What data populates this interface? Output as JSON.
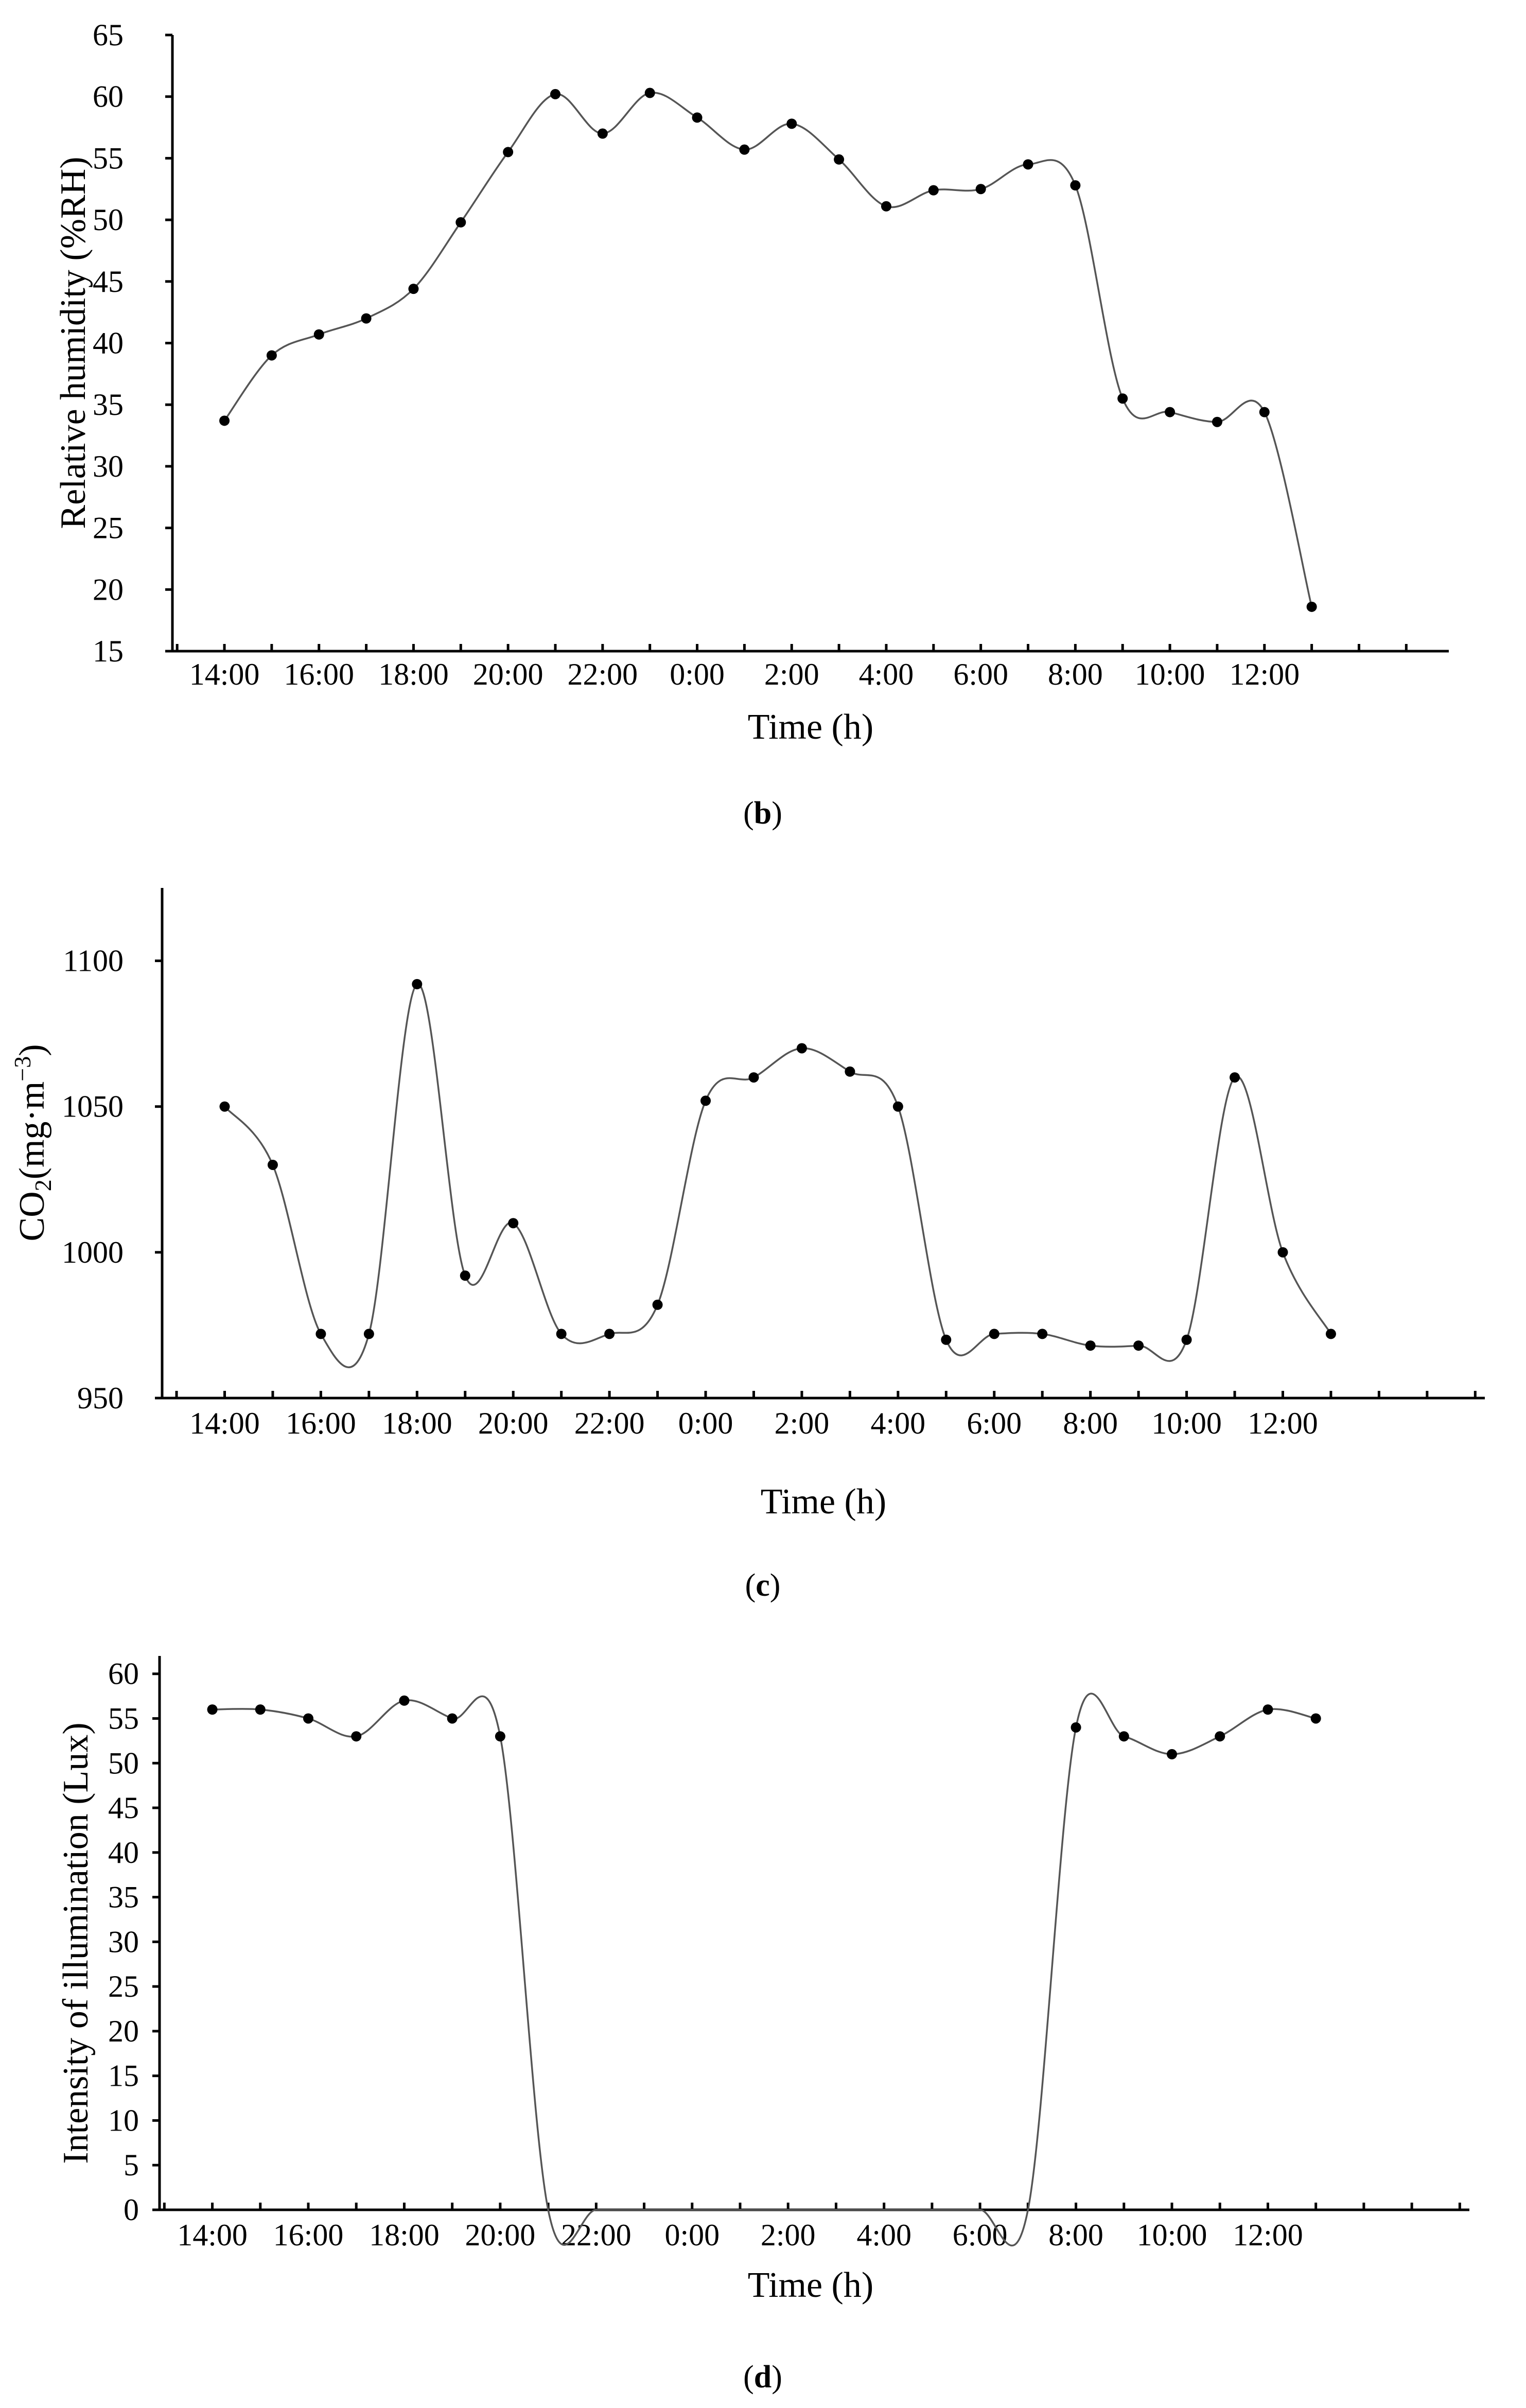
{
  "chart_data": [
    {
      "type": "line",
      "id": "b",
      "caption_letter": "b",
      "xlabel": "Time (h)",
      "ylabel": "Relative humidity (%RH)",
      "ylim": [
        15,
        65
      ],
      "yticks": [
        15,
        20,
        25,
        30,
        35,
        40,
        45,
        50,
        55,
        60,
        65
      ],
      "xlim": [
        12.9,
        39.9
      ],
      "xtick_labels": [
        "14:00",
        "16:00",
        "18:00",
        "20:00",
        "22:00",
        "0:00",
        "2:00",
        "4:00",
        "6:00",
        "8:00",
        "10:00",
        "12:00"
      ],
      "x": [
        14,
        15,
        16,
        17,
        18,
        19,
        20,
        21,
        22,
        23,
        24,
        25,
        26,
        27,
        28,
        29,
        30,
        31,
        32,
        33,
        34,
        35,
        36,
        37
      ],
      "values": [
        33.7,
        39.0,
        40.7,
        42.0,
        44.4,
        49.8,
        55.5,
        60.2,
        57.0,
        60.3,
        58.3,
        55.7,
        57.8,
        54.9,
        51.1,
        52.4,
        52.5,
        54.5,
        52.8,
        35.5,
        34.4,
        33.6,
        34.4,
        18.6
      ]
    },
    {
      "type": "line",
      "id": "c",
      "caption_letter": "c",
      "xlabel": "Time (h)",
      "ylabel_main": "CO",
      "ylabel_sub": "2",
      "ylabel_unit_pre": "(mg·m",
      "ylabel_sup": "−3",
      "ylabel_unit_post": ")",
      "ylim": [
        950,
        1125
      ],
      "yticks": [
        950,
        1000,
        1050,
        1100
      ],
      "xlim": [
        12.7,
        40.2
      ],
      "xtick_labels": [
        "14:00",
        "16:00",
        "18:00",
        "20:00",
        "22:00",
        "0:00",
        "2:00",
        "4:00",
        "6:00",
        "8:00",
        "10:00",
        "12:00"
      ],
      "x": [
        14,
        15,
        16,
        17,
        18,
        19,
        20,
        21,
        22,
        23,
        24,
        25,
        26,
        27,
        28,
        29,
        30,
        31,
        32,
        33,
        34,
        35,
        36,
        37
      ],
      "values": [
        1050,
        1030,
        972,
        972,
        1092,
        992,
        1010,
        972,
        972,
        982,
        1052,
        1060,
        1070,
        1062,
        1050,
        970,
        972,
        972,
        968,
        968,
        970,
        1060,
        1000,
        972
      ]
    },
    {
      "type": "line",
      "id": "d",
      "caption_letter": "d",
      "xlabel": "Time (h)",
      "ylabel": "Intensity of illumination (Lux)",
      "ylim": [
        0,
        62
      ],
      "yticks": [
        0,
        5,
        10,
        15,
        20,
        25,
        30,
        35,
        40,
        45,
        50,
        55,
        60
      ],
      "xlim": [
        12.9,
        40.2
      ],
      "xtick_labels": [
        "14:00",
        "16:00",
        "18:00",
        "20:00",
        "22:00",
        "0:00",
        "2:00",
        "4:00",
        "6:00",
        "8:00",
        "10:00",
        "12:00"
      ],
      "x": [
        14,
        15,
        16,
        17,
        18,
        19,
        20,
        21,
        22,
        23,
        24,
        25,
        26,
        27,
        28,
        29,
        30,
        31,
        32,
        33,
        34,
        35,
        36,
        37
      ],
      "values": [
        56,
        56,
        55,
        53,
        57,
        55,
        53,
        0,
        0,
        0,
        0,
        0,
        0,
        0,
        0,
        0,
        0,
        0,
        54,
        53,
        51,
        53,
        56,
        55
      ]
    }
  ]
}
